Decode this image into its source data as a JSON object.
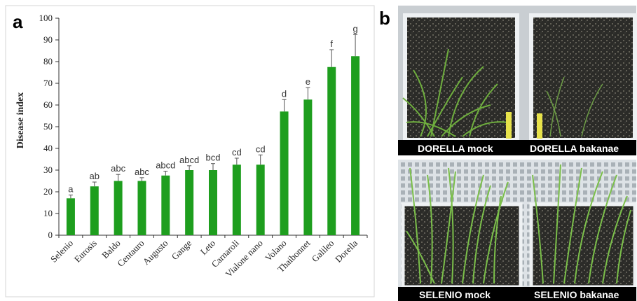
{
  "panel_a_letter": "a",
  "panel_b_letter": "b",
  "chart_data": {
    "type": "bar",
    "title": "",
    "xlabel": "",
    "ylabel": "Disease index",
    "ylim": [
      0,
      100
    ],
    "yticks": [
      0,
      10,
      20,
      30,
      40,
      50,
      60,
      70,
      80,
      90,
      100
    ],
    "grid": false,
    "bar_color": "#1e9e1e",
    "categories": [
      "Selenio",
      "Eurosis",
      "Baldo",
      "Centauro",
      "Augusto",
      "Gange",
      "Leto",
      "Carnaroli",
      "Vialone nano",
      "Volano",
      "Thaibonnet",
      "Galileo",
      "Dorella"
    ],
    "values": [
      17,
      22.5,
      25,
      25,
      27.5,
      30,
      30,
      32.5,
      32.5,
      57,
      62.5,
      77.5,
      82.5
    ],
    "errors": [
      1.5,
      2,
      3,
      1.5,
      2,
      2,
      3,
      3,
      4.5,
      5.5,
      5.5,
      8,
      10
    ],
    "significance_letters": [
      "a",
      "ab",
      "abc",
      "abc",
      "abcd",
      "abcd",
      "bcd",
      "cd",
      "cd",
      "d",
      "e",
      "f",
      "g"
    ]
  },
  "photos": {
    "top_left_caption": "DORELLA mock",
    "top_right_caption": "DORELLA bakanae",
    "bottom_left_caption": "SELENIO mock",
    "bottom_right_caption": "SELENIO bakanae"
  }
}
